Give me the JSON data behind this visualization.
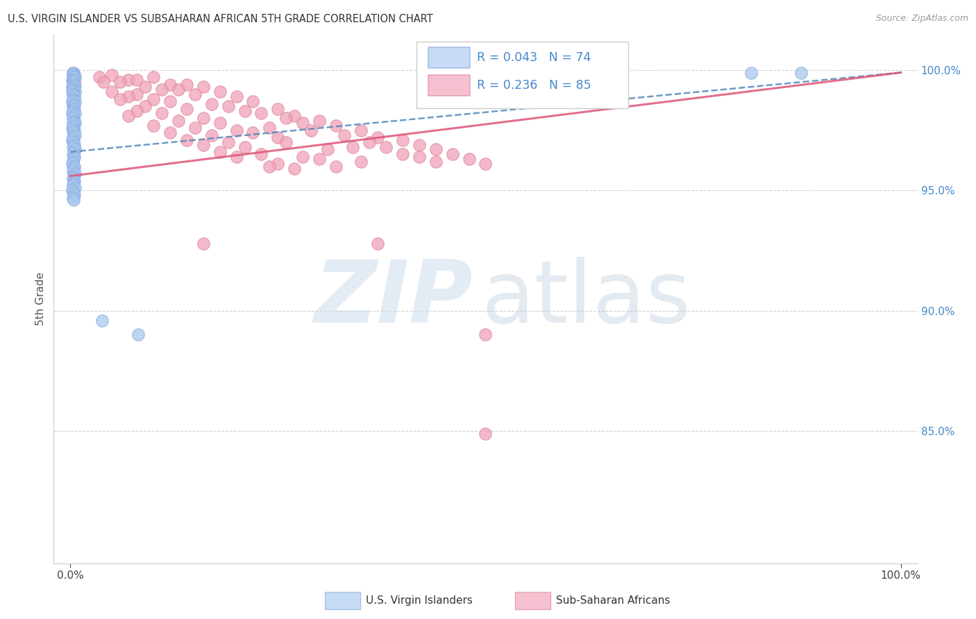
{
  "title": "U.S. VIRGIN ISLANDER VS SUBSAHARAN AFRICAN 5TH GRADE CORRELATION CHART",
  "source": "Source: ZipAtlas.com",
  "ylabel": "5th Grade",
  "xlim": [
    -0.02,
    1.02
  ],
  "ylim": [
    0.795,
    1.015
  ],
  "ytick_positions": [
    0.85,
    0.9,
    0.95,
    1.0
  ],
  "ytick_labels": [
    "85.0%",
    "90.0%",
    "95.0%",
    "100.0%"
  ],
  "xtick_positions": [
    0.0,
    1.0
  ],
  "xtick_labels": [
    "0.0%",
    "100.0%"
  ],
  "legend_R_blue": "R = 0.043",
  "legend_N_blue": "N = 74",
  "legend_R_pink": "R = 0.236",
  "legend_N_pink": "N = 85",
  "label_blue": "U.S. Virgin Islanders",
  "label_pink": "Sub-Saharan Africans",
  "blue_fill": "#a8c8f0",
  "blue_edge": "#88aadd",
  "blue_line_color": "#5588bb",
  "pink_fill": "#f0a0b8",
  "pink_edge": "#dd8899",
  "pink_line_color": "#dd5577",
  "grid_color": "#cccccc",
  "title_color": "#333333",
  "source_color": "#999999",
  "right_tick_color": "#4488cc",
  "blue_trendline": [
    0.0,
    0.966,
    1.0,
    0.999
  ],
  "pink_trendline": [
    0.0,
    0.956,
    1.0,
    0.999
  ],
  "blue_scatter_x": [
    0.003,
    0.004,
    0.005,
    0.003,
    0.006,
    0.004,
    0.002,
    0.005,
    0.003,
    0.004,
    0.006,
    0.003,
    0.002,
    0.005,
    0.004,
    0.003,
    0.006,
    0.002,
    0.004,
    0.003,
    0.005,
    0.004,
    0.003,
    0.006,
    0.002,
    0.004,
    0.003,
    0.005,
    0.004,
    0.003,
    0.006,
    0.002,
    0.004,
    0.003,
    0.005,
    0.006,
    0.003,
    0.004,
    0.002,
    0.005,
    0.003,
    0.004,
    0.006,
    0.003,
    0.002,
    0.004,
    0.005,
    0.003,
    0.006,
    0.004,
    0.003,
    0.005,
    0.004,
    0.003,
    0.002,
    0.005,
    0.004,
    0.003,
    0.006,
    0.004,
    0.003,
    0.005,
    0.004,
    0.003,
    0.006,
    0.002,
    0.004,
    0.005,
    0.003,
    0.004,
    0.038,
    0.082,
    0.82,
    0.88
  ],
  "blue_scatter_y": [
    0.999,
    0.999,
    0.998,
    0.998,
    0.997,
    0.997,
    0.996,
    0.996,
    0.995,
    0.995,
    0.994,
    0.994,
    0.993,
    0.993,
    0.992,
    0.992,
    0.991,
    0.991,
    0.99,
    0.99,
    0.989,
    0.988,
    0.988,
    0.987,
    0.987,
    0.986,
    0.985,
    0.985,
    0.984,
    0.983,
    0.982,
    0.982,
    0.981,
    0.98,
    0.979,
    0.978,
    0.978,
    0.977,
    0.976,
    0.975,
    0.975,
    0.974,
    0.973,
    0.972,
    0.971,
    0.97,
    0.969,
    0.968,
    0.967,
    0.966,
    0.965,
    0.964,
    0.963,
    0.962,
    0.961,
    0.96,
    0.959,
    0.958,
    0.957,
    0.956,
    0.955,
    0.954,
    0.953,
    0.952,
    0.951,
    0.95,
    0.949,
    0.948,
    0.947,
    0.946,
    0.896,
    0.89,
    0.999,
    0.999
  ],
  "pink_scatter_x": [
    0.035,
    0.05,
    0.07,
    0.1,
    0.04,
    0.08,
    0.12,
    0.06,
    0.09,
    0.14,
    0.11,
    0.16,
    0.05,
    0.13,
    0.08,
    0.18,
    0.07,
    0.15,
    0.1,
    0.2,
    0.12,
    0.06,
    0.17,
    0.09,
    0.22,
    0.14,
    0.19,
    0.08,
    0.25,
    0.11,
    0.07,
    0.21,
    0.16,
    0.27,
    0.13,
    0.23,
    0.18,
    0.3,
    0.1,
    0.26,
    0.15,
    0.32,
    0.2,
    0.28,
    0.12,
    0.35,
    0.24,
    0.17,
    0.22,
    0.37,
    0.29,
    0.14,
    0.33,
    0.19,
    0.4,
    0.25,
    0.16,
    0.36,
    0.21,
    0.42,
    0.31,
    0.26,
    0.38,
    0.18,
    0.44,
    0.23,
    0.34,
    0.28,
    0.46,
    0.3,
    0.2,
    0.4,
    0.35,
    0.48,
    0.25,
    0.42,
    0.32,
    0.5,
    0.27,
    0.44,
    0.37,
    0.16,
    0.24,
    0.5,
    0.5
  ],
  "pink_scatter_y": [
    0.997,
    0.998,
    0.996,
    0.997,
    0.995,
    0.996,
    0.994,
    0.995,
    0.993,
    0.994,
    0.992,
    0.993,
    0.991,
    0.992,
    0.99,
    0.991,
    0.989,
    0.99,
    0.988,
    0.989,
    0.987,
    0.988,
    0.986,
    0.985,
    0.987,
    0.984,
    0.985,
    0.983,
    0.984,
    0.982,
    0.981,
    0.983,
    0.98,
    0.981,
    0.979,
    0.982,
    0.978,
    0.979,
    0.977,
    0.98,
    0.976,
    0.977,
    0.975,
    0.978,
    0.974,
    0.975,
    0.976,
    0.973,
    0.974,
    0.972,
    0.975,
    0.971,
    0.973,
    0.97,
    0.971,
    0.972,
    0.969,
    0.97,
    0.968,
    0.969,
    0.967,
    0.97,
    0.968,
    0.966,
    0.967,
    0.965,
    0.968,
    0.964,
    0.965,
    0.963,
    0.964,
    0.965,
    0.962,
    0.963,
    0.961,
    0.964,
    0.96,
    0.961,
    0.959,
    0.962,
    0.928,
    0.928,
    0.96,
    0.89,
    0.849
  ]
}
